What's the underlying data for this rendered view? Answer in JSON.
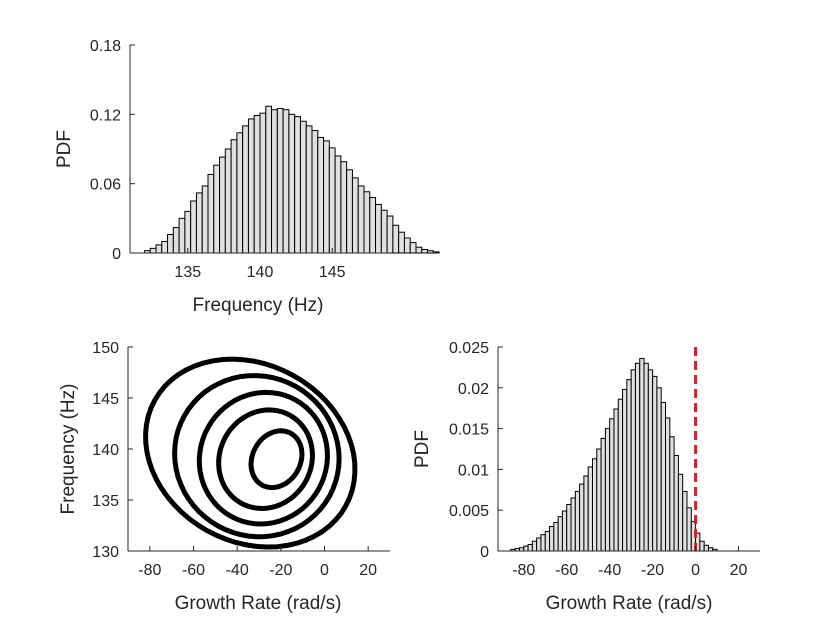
{
  "chart_data": [
    {
      "id": "freq_hist",
      "type": "bar",
      "subtype": "histogram",
      "xlabel": "Frequency (Hz)",
      "ylabel": "PDF",
      "xlim": [
        131,
        149
      ],
      "ylim": [
        0,
        0.18
      ],
      "xticks": [
        135,
        140,
        145
      ],
      "yticks": [
        0,
        0.06,
        0.12,
        0.18
      ],
      "ytick_labels": [
        "0",
        "0.06",
        "0.12",
        "0.18"
      ],
      "bin_start": 132,
      "bin_width": 0.4,
      "values": [
        0.002,
        0.004,
        0.007,
        0.01,
        0.016,
        0.022,
        0.03,
        0.036,
        0.045,
        0.052,
        0.058,
        0.068,
        0.076,
        0.083,
        0.09,
        0.098,
        0.104,
        0.11,
        0.116,
        0.119,
        0.121,
        0.127,
        0.124,
        0.125,
        0.124,
        0.12,
        0.118,
        0.114,
        0.11,
        0.106,
        0.1,
        0.097,
        0.091,
        0.084,
        0.079,
        0.072,
        0.065,
        0.058,
        0.053,
        0.048,
        0.042,
        0.037,
        0.032,
        0.024,
        0.018,
        0.013,
        0.009,
        0.005,
        0.003,
        0.002,
        0.001
      ],
      "bar_fill": "#e0e0e0"
    },
    {
      "id": "joint_contour",
      "type": "contour",
      "xlabel": "Growth Rate (rad/s)",
      "ylabel": "Frequency (Hz)",
      "xlim": [
        -90,
        30
      ],
      "ylim": [
        130,
        150
      ],
      "xticks": [
        -80,
        -60,
        -40,
        -20,
        0,
        20
      ],
      "yticks": [
        130,
        135,
        140,
        145,
        150
      ],
      "contours": [
        {
          "center": [
            -34,
            139.6
          ],
          "rx": 50,
          "ry": 3.0,
          "angle": -29
        },
        {
          "center": [
            -31,
            139.3
          ],
          "rx": 38,
          "ry": 2.7,
          "angle": -29
        },
        {
          "center": [
            -28,
            139.1
          ],
          "rx": 29,
          "ry": 2.25,
          "angle": -29
        },
        {
          "center": [
            -27,
            139.0
          ],
          "rx": 21,
          "ry": 1.7,
          "angle": -29
        },
        {
          "center": [
            -22,
            139.0
          ],
          "rx": 11,
          "ry": 1.0,
          "angle": -29
        }
      ]
    },
    {
      "id": "growth_hist",
      "type": "bar",
      "subtype": "histogram",
      "xlabel": "Growth Rate (rad/s)",
      "ylabel": "PDF",
      "xlim": [
        -92,
        30
      ],
      "ylim": [
        0,
        0.025
      ],
      "xticks": [
        -80,
        -60,
        -40,
        -20,
        0,
        20
      ],
      "yticks": [
        0,
        0.005,
        0.01,
        0.015,
        0.02,
        0.025
      ],
      "ytick_labels": [
        "0",
        "0.005",
        "0.01",
        "0.015",
        "0.02",
        "0.025"
      ],
      "bin_start": -86,
      "bin_width": 2,
      "values": [
        0.0002,
        0.0003,
        0.0004,
        0.0006,
        0.0008,
        0.0012,
        0.0016,
        0.002,
        0.0024,
        0.003,
        0.0035,
        0.0042,
        0.0049,
        0.0057,
        0.0065,
        0.0073,
        0.0082,
        0.0092,
        0.0103,
        0.0113,
        0.0125,
        0.0138,
        0.015,
        0.0162,
        0.0174,
        0.0186,
        0.0198,
        0.021,
        0.0222,
        0.023,
        0.0236,
        0.023,
        0.0222,
        0.0214,
        0.02,
        0.0182,
        0.0163,
        0.014,
        0.0117,
        0.0094,
        0.0073,
        0.0053,
        0.0036,
        0.0022,
        0.0012,
        0.0007,
        0.0004,
        0.0002
      ],
      "bar_fill": "#e0e0e0",
      "reference_line": {
        "x": 0,
        "color": "#e41a1c",
        "style": "dashed"
      }
    }
  ]
}
